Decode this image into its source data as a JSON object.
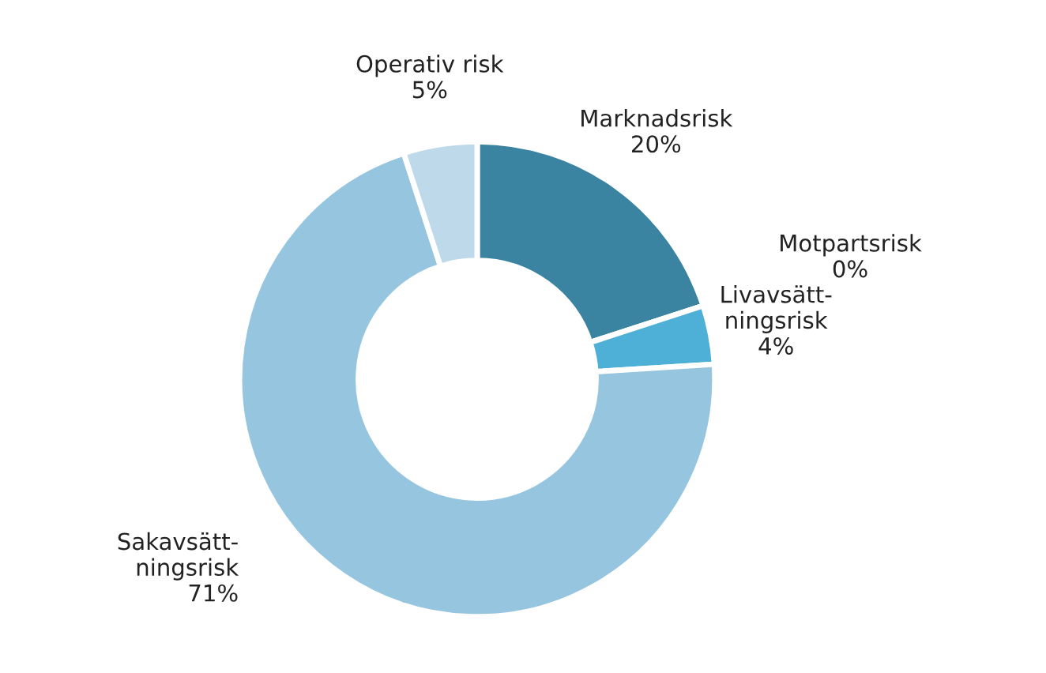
{
  "chart_data": {
    "type": "donut",
    "categories": [
      "Marknadsrisk",
      "Motpartsrisk",
      "Livavsätt-\nningsrisk",
      "Sakavsätt-\nningsrisk",
      "Operativ risk"
    ],
    "values": [
      20,
      0,
      4,
      71,
      5
    ],
    "value_labels": [
      "20%",
      "0%",
      "4%",
      "71%",
      "5%"
    ],
    "colors": [
      "#3a83a1",
      "#2f6f8a",
      "#4fb0d7",
      "#96c5df",
      "#bdd9ea"
    ]
  }
}
